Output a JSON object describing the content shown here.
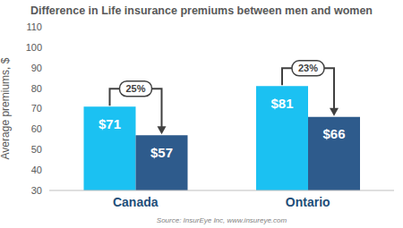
{
  "chart_data": {
    "type": "bar",
    "title": "Difference in Life insurance premiums between men and women",
    "y_label": "Average premiums, $",
    "source": "Source: InsurEye Inc, www.insureye.com",
    "categories": [
      "Canada",
      "Ontario"
    ],
    "series": [
      {
        "color": "#1BC1F2",
        "values": [
          71,
          81
        ],
        "value_labels": [
          "$71",
          "$81"
        ]
      },
      {
        "color": "#2E5B8C",
        "values": [
          57,
          66
        ],
        "value_labels": [
          "$57",
          "$66"
        ]
      }
    ],
    "annotations": [
      {
        "category": "Canada",
        "text": "25%"
      },
      {
        "category": "Ontario",
        "text": "23%"
      }
    ],
    "ylim": [
      30,
      110
    ],
    "yticks": [
      30,
      40,
      50,
      60,
      70,
      80,
      90,
      100,
      110
    ],
    "grid": false,
    "data_labels": true
  }
}
